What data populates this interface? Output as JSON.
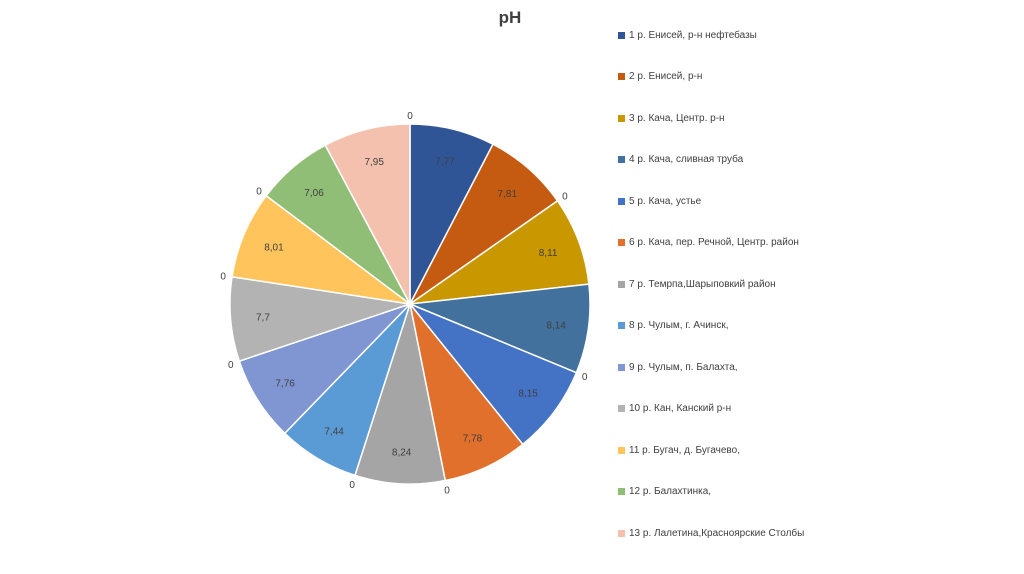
{
  "chart_data": {
    "type": "pie",
    "title": "pH",
    "categories": [
      "1 р. Енисей, р-н нефтебазы",
      "2 р. Енисей, р-н",
      "3 р. Кача, Центр. р-н",
      "4 р. Кача, сливная труба",
      "5 р. Кача, устье",
      "6 р. Кача, пер. Речной, Центр. район",
      "7 р. Темрпа,Шарыповкий район",
      "8 р. Чулым, г. Ачинск,",
      "9 р. Чулым, п. Балахта,",
      "10 р. Кан, Канский р-н",
      "11 р. Бугач, д. Бугачево,",
      "12 р. Балахтинка,",
      "13 р. Лалетина,Красноярские Столбы"
    ],
    "values": [
      7.77,
      7.81,
      8.11,
      8.14,
      8.15,
      7.78,
      8.24,
      7.44,
      7.76,
      7.7,
      8.01,
      7.06,
      7.95
    ],
    "value_labels": [
      "7,77",
      "7,81",
      "8,11",
      "8,14",
      "8,15",
      "7,78",
      "8,24",
      "7,44",
      "7,76",
      "7,7",
      "8,01",
      "7,06",
      "7,95"
    ],
    "zero_labels": [
      "0",
      "0",
      "0",
      "0",
      "0",
      "0",
      "0",
      "0"
    ],
    "colors": [
      "#2F5597",
      "#C55A11",
      "#C99700",
      "#41719C",
      "#4472C4",
      "#E0702C",
      "#A5A5A5",
      "#5B9BD5",
      "#7F96D3",
      "#B3B3B3",
      "#FFC55C",
      "#91BE76",
      "#F4C1AE"
    ],
    "legend_position": "right"
  }
}
